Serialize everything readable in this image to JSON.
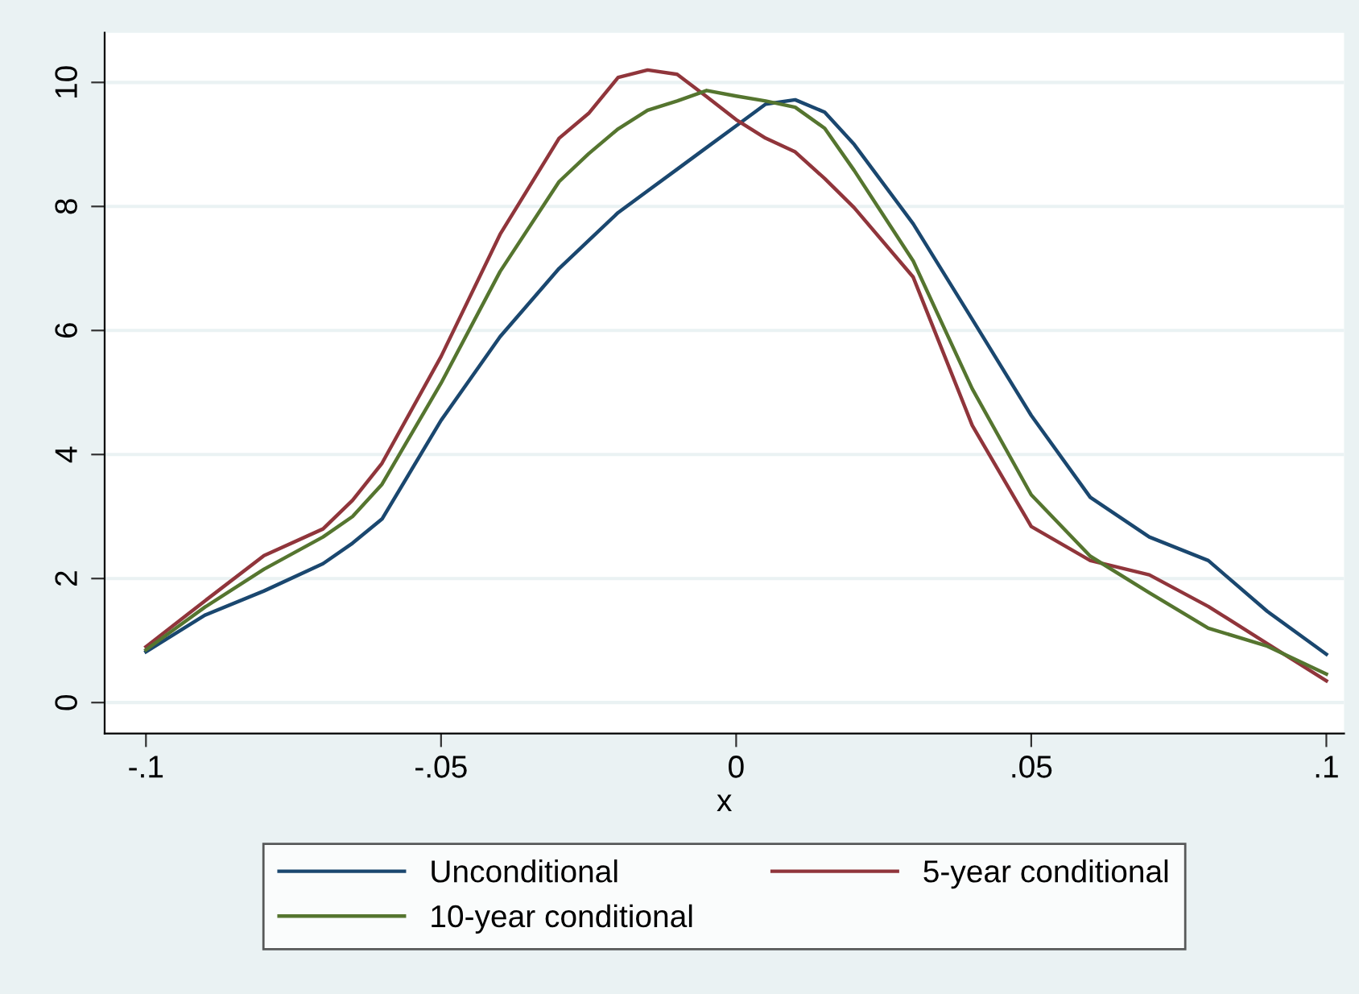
{
  "chart_data": {
    "type": "line",
    "xlabel": "x",
    "xlim": [
      -0.107,
      0.103
    ],
    "xticks": [
      {
        "value": -0.1,
        "label": "-.1"
      },
      {
        "value": -0.05,
        "label": "-.05"
      },
      0,
      {
        "value": 0.05,
        "label": ".05"
      },
      {
        "value": 0.1,
        "label": ".1"
      }
    ],
    "ylim": [
      -0.5,
      10.8
    ],
    "yticks": [
      0,
      2,
      4,
      6,
      8,
      10
    ],
    "grid": "y",
    "legend": "bottom",
    "line_style": "solid",
    "x": [
      -0.1,
      -0.09,
      -0.08,
      -0.07,
      -0.065,
      -0.06,
      -0.05,
      -0.04,
      -0.03,
      -0.025,
      -0.02,
      -0.015,
      -0.01,
      -0.005,
      0,
      0.005,
      0.01,
      0.015,
      0.02,
      0.03,
      0.04,
      0.05,
      0.06,
      0.07,
      0.08,
      0.09,
      0.1
    ],
    "series": [
      {
        "name": "Unconditional",
        "color": "#1a476f",
        "values": [
          0.82,
          1.41,
          1.8,
          2.24,
          2.57,
          2.96,
          4.55,
          5.9,
          7.0,
          7.45,
          7.9,
          8.25,
          8.6,
          8.95,
          9.3,
          9.65,
          9.72,
          9.52,
          9.0,
          7.72,
          6.18,
          4.63,
          3.31,
          2.67,
          2.29,
          1.47,
          0.78
        ]
      },
      {
        "name": "5-year conditional",
        "color": "#90353b",
        "values": [
          0.9,
          1.64,
          2.37,
          2.8,
          3.26,
          3.86,
          5.58,
          7.55,
          9.1,
          9.5,
          10.08,
          10.2,
          10.13,
          9.77,
          9.4,
          9.1,
          8.88,
          8.45,
          7.98,
          6.86,
          4.47,
          2.84,
          2.29,
          2.06,
          1.55,
          0.95,
          0.35
        ]
      },
      {
        "name": "10-year conditional",
        "color": "#55752f",
        "values": [
          0.85,
          1.54,
          2.15,
          2.67,
          3.0,
          3.52,
          5.15,
          6.95,
          8.4,
          8.85,
          9.25,
          9.55,
          9.7,
          9.87,
          9.78,
          9.7,
          9.6,
          9.26,
          8.58,
          7.12,
          5.06,
          3.35,
          2.36,
          1.77,
          1.2,
          0.91,
          0.46
        ]
      }
    ]
  }
}
